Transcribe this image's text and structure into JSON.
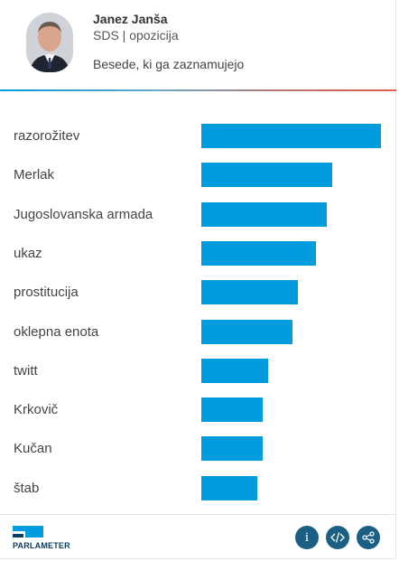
{
  "header": {
    "name": "Janez Janša",
    "party": "SDS | opozicija",
    "subtitle": "Besede, ki ga zaznamujejo"
  },
  "chart_data": {
    "type": "bar",
    "orientation": "horizontal",
    "categories": [
      "razorožitev",
      "Merlak",
      "Jugoslovanska armada",
      "ukaz",
      "prostitucija",
      "oklepna enota",
      "twitt",
      "Krkovič",
      "Kučan",
      "štab"
    ],
    "values": [
      100,
      73,
      70,
      64,
      54,
      51,
      37,
      34,
      34,
      31
    ],
    "bar_color": "#009cdd",
    "xlim": [
      0,
      100
    ]
  },
  "footer": {
    "logo_text": "PARLAMETER",
    "info_label": "i",
    "icons": [
      "info-icon",
      "embed-icon",
      "share-icon"
    ],
    "button_color": "#1b5f84"
  }
}
